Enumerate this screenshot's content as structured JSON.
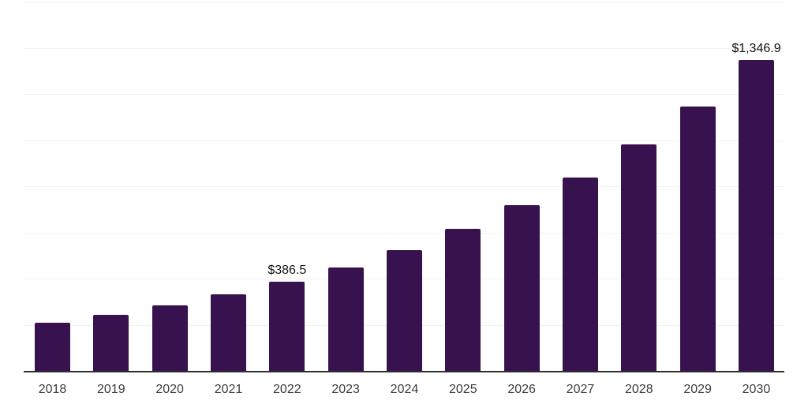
{
  "chart_data": {
    "type": "bar",
    "title": "",
    "xlabel": "",
    "ylabel": "",
    "categories": [
      "2018",
      "2019",
      "2020",
      "2021",
      "2022",
      "2023",
      "2024",
      "2025",
      "2026",
      "2027",
      "2028",
      "2029",
      "2030"
    ],
    "values": [
      210,
      244,
      285,
      332,
      386.5,
      449,
      523,
      616,
      717,
      838,
      981,
      1147,
      1346.9
    ],
    "value_labels": [
      {
        "category": "2022",
        "text": "$386.5"
      },
      {
        "category": "2030",
        "text": "$1,346.9"
      }
    ],
    "ylim": [
      0,
      1600
    ],
    "grid": {
      "horizontal": true,
      "step": 200,
      "vertical": false
    },
    "legend": "none",
    "y_tick_labels_visible": false,
    "colors": {
      "bar": "#38124f",
      "gridline": "#f2f2f2",
      "axis_line": "#2e2e2e",
      "tick_label": "#3d3d3d",
      "value_label": "#111111",
      "background": "#ffffff"
    }
  }
}
